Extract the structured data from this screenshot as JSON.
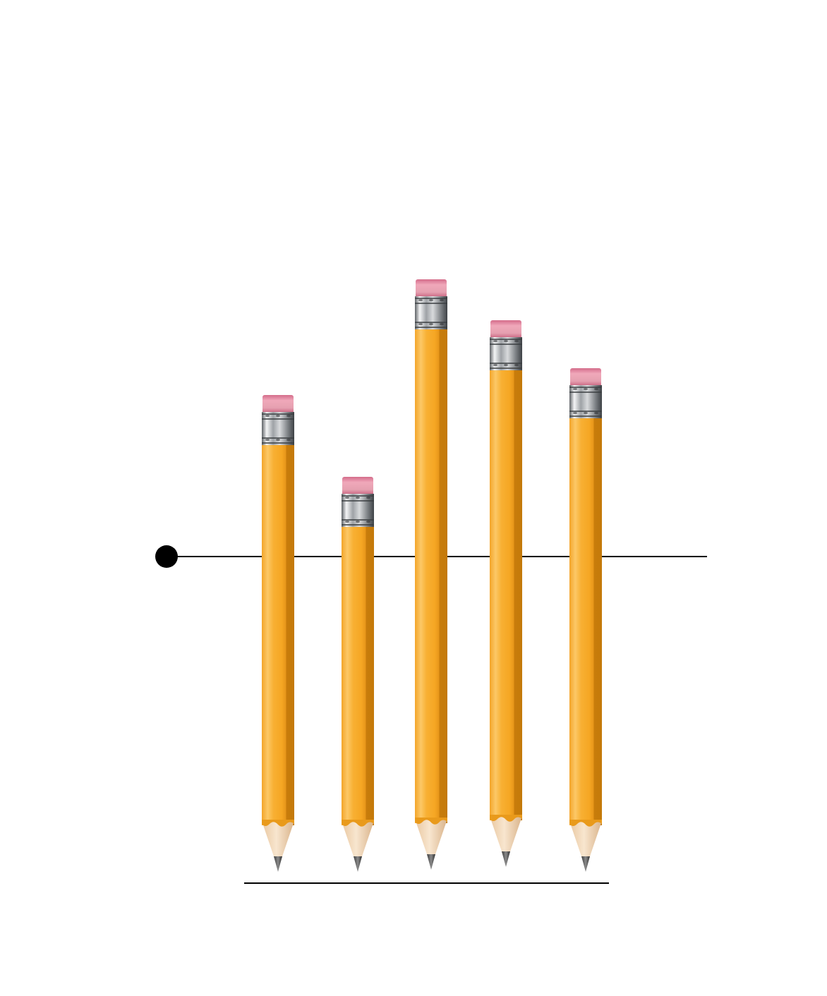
{
  "scene": {
    "description_hidden": "",
    "pencil_count": 5,
    "pencils": [
      {
        "id": "pencil-1",
        "relative_length": 0.6
      },
      {
        "id": "pencil-2",
        "relative_length": 0.47
      },
      {
        "id": "pencil-3",
        "relative_length": 0.77
      },
      {
        "id": "pencil-4",
        "relative_length": 0.7
      },
      {
        "id": "pencil-5",
        "relative_length": 0.63
      }
    ],
    "colors": {
      "pencil_body": "#F5A623",
      "pencil_shade": "#C97D0A",
      "pencil_highlight": "#FCC86A",
      "eraser": "#E08AA0",
      "ferrule": "#B8BCC0",
      "wood": "#F2D9B8",
      "graphite": "#555555",
      "line": "#000000"
    }
  }
}
